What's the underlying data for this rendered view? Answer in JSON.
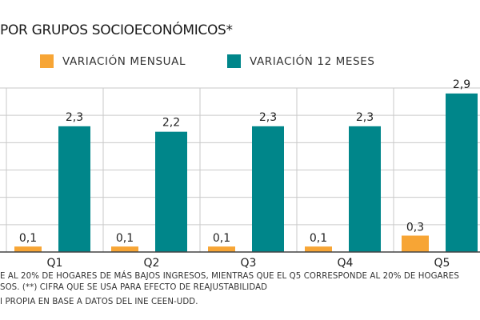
{
  "chart_data": {
    "type": "bar",
    "title": "POR GRUPOS SOCIOECONÓMICOS*",
    "categories": [
      "Q1",
      "Q2",
      "Q3",
      "Q4",
      "Q5"
    ],
    "series": [
      {
        "name": "VARIACIÓN MENSUAL",
        "color": "#f7a535",
        "values": [
          0.1,
          0.1,
          0.1,
          0.1,
          0.3
        ],
        "labels": [
          "0,1",
          "0,1",
          "0,1",
          "0,1",
          "0,3"
        ]
      },
      {
        "name": "VARIACIÓN 12 MESES",
        "color": "#00868a",
        "values": [
          2.3,
          2.2,
          2.3,
          2.3,
          2.9
        ],
        "labels": [
          "2,3",
          "2,2",
          "2,3",
          "2,3",
          "2,9"
        ]
      }
    ],
    "ylim": [
      0,
      3.0
    ],
    "xlabel": "",
    "ylabel": "",
    "grid": true,
    "legend_position": "top"
  },
  "notes": [
    "E AL 20% DE HOGARES DE MÁS BAJOS INGRESOS, MIENTRAS QUE EL Q5 CORRESPONDE AL 20% DE HOGARES",
    "SOS. (**) CIFRA QUE SE USA PARA EFECTO DE REAJUSTABILIDAD",
    "I PROPIA EN BASE A DATOS DEL INE CEEN-UDD."
  ]
}
